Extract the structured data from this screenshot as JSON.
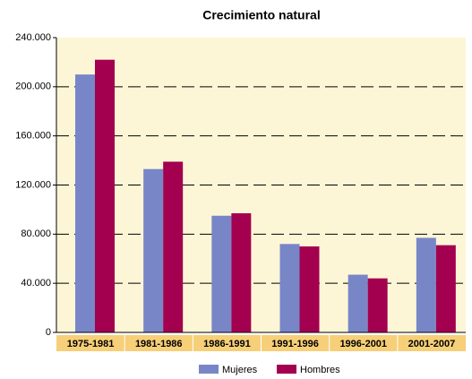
{
  "chart_data": {
    "type": "bar",
    "title": "Crecimiento natural",
    "categories": [
      "1975-1981",
      "1981-1986",
      "1986-1991",
      "1991-1996",
      "1996-2001",
      "2001-2007"
    ],
    "series": [
      {
        "name": "Mujeres",
        "color": "#7886c8",
        "values": [
          210000,
          133000,
          95000,
          72000,
          47000,
          77000
        ]
      },
      {
        "name": "Hombres",
        "color": "#a3004f",
        "values": [
          222000,
          139000,
          97000,
          70000,
          44000,
          71000
        ]
      }
    ],
    "ylim": [
      0,
      240000
    ],
    "yticks": [
      0,
      {
        "value": 40000,
        "label": "40.000"
      },
      {
        "value": 80000,
        "label": "80.000"
      },
      {
        "value": 120000,
        "label": "120.000"
      },
      {
        "value": 160000,
        "label": "160.000"
      },
      {
        "value": 200000,
        "label": "200.000"
      },
      {
        "value": 240000,
        "label": "240.000"
      }
    ],
    "grid": true,
    "legend": "bottom"
  }
}
